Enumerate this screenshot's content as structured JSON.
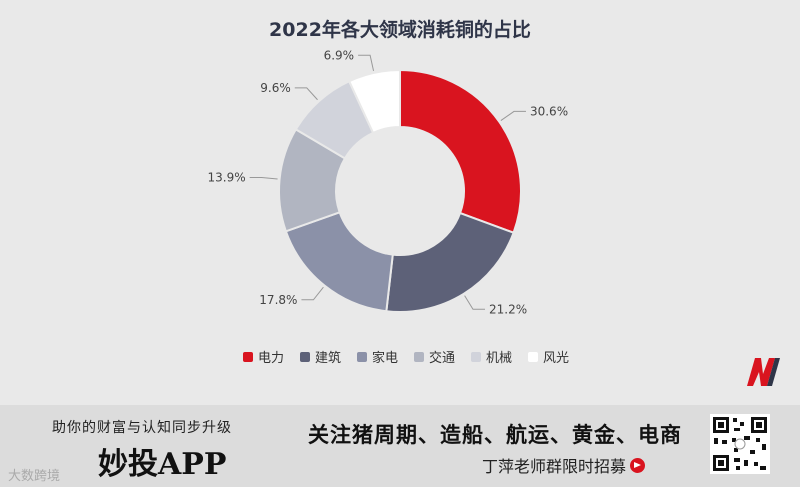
{
  "chart_data": {
    "type": "pie",
    "variant": "donut",
    "title": "2022年各大领域消耗铜的占比",
    "legend_position": "bottom",
    "slices": [
      {
        "name": "电力",
        "value": 30.6,
        "label": "30.6%",
        "color": "#d9141f"
      },
      {
        "name": "建筑",
        "value": 21.2,
        "label": "21.2%",
        "color": "#5d6178"
      },
      {
        "name": "家电",
        "value": 17.8,
        "label": "17.8%",
        "color": "#8b91a8"
      },
      {
        "name": "交通",
        "value": 13.9,
        "label": "13.9%",
        "color": "#b1b5c1"
      },
      {
        "name": "机械",
        "value": 9.6,
        "label": "9.6%",
        "color": "#d1d3db"
      },
      {
        "name": "风光",
        "value": 6.9,
        "label": "6.9%",
        "color": "#ffffff"
      }
    ]
  },
  "footer": {
    "slogan": "助你的财富与认知同步升级",
    "app_name": "妙投APP",
    "watermark": "大数跨境",
    "headline": "关注猪周期、造船、航运、黄金、电商",
    "recruit": "丁萍老师群限时招募"
  },
  "icons": {
    "logo": "m-logo-icon",
    "arrow": "arrow-right-circle-icon",
    "qr": "qr-code-icon"
  }
}
